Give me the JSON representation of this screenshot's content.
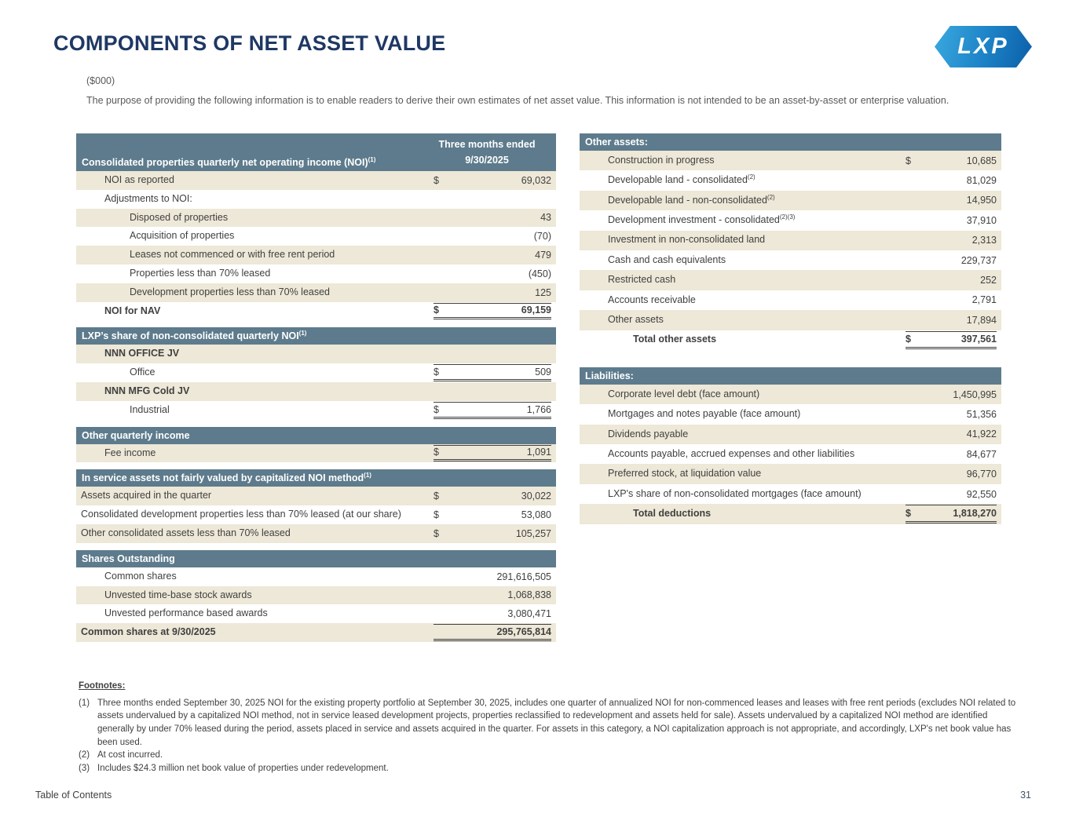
{
  "page": {
    "title": "COMPONENTS OF NET ASSET VALUE",
    "units": "($000)",
    "intro": "The purpose of providing the following information is to enable readers to derive their own estimates of net asset value. This information is not intended to be an asset-by-asset or enterprise valuation.",
    "logo_text": "LXP",
    "footer_link": "Table of Contents",
    "page_number": "31"
  },
  "colors": {
    "title_navy": "#1F3864",
    "header_slate": "#5D7B8C",
    "row_beige": "#EDE8D7",
    "logo_blue_light": "#3BA9DF",
    "logo_blue_dark": "#0B5FA9",
    "body_text": "#404040"
  },
  "left_table": {
    "items": [
      {
        "type": "colheader",
        "label": "Consolidated properties quarterly net operating income (NOI)",
        "sup": "(1)",
        "col1": "Three months ended",
        "col2": "9/30/2025"
      },
      {
        "type": "row",
        "label": "NOI as reported",
        "indent": 1,
        "dollar": "$",
        "value": "69,032",
        "shade": true
      },
      {
        "type": "row",
        "label": "Adjustments to NOI:",
        "indent": 1,
        "shade": false
      },
      {
        "type": "row",
        "label": "Disposed of properties",
        "indent": 2,
        "value": "43",
        "shade": true
      },
      {
        "type": "row",
        "label": "Acquisition of properties",
        "indent": 2,
        "value": "(70)",
        "shade": false
      },
      {
        "type": "row",
        "label": "Leases not commenced or with free rent period",
        "indent": 2,
        "value": "479",
        "shade": true
      },
      {
        "type": "row",
        "label": "Properties less than 70% leased",
        "indent": 2,
        "value": "(450)",
        "shade": false
      },
      {
        "type": "row",
        "label": "Development properties less than 70% leased",
        "indent": 2,
        "value": "125",
        "shade": true
      },
      {
        "type": "row",
        "label": "NOI for NAV",
        "indent": 1,
        "bold": true,
        "dollar": "$",
        "value": "69,159",
        "shade": false,
        "total": true
      },
      {
        "type": "section",
        "label": "LXP’s share of non-consolidated quarterly NOI",
        "sup": "(1)"
      },
      {
        "type": "row",
        "label": "NNN OFFICE JV",
        "indent": 1,
        "bold": true,
        "shade": true
      },
      {
        "type": "row",
        "label": "Office",
        "indent": 2,
        "dollar": "$",
        "value": "509",
        "shade": false,
        "total": true
      },
      {
        "type": "row",
        "label": "NNN MFG Cold JV",
        "indent": 1,
        "bold": true,
        "shade": true
      },
      {
        "type": "row",
        "label": "Industrial",
        "indent": 2,
        "dollar": "$",
        "value": "1,766",
        "shade": false,
        "total": true
      },
      {
        "type": "section",
        "label": "Other quarterly income"
      },
      {
        "type": "row",
        "label": "Fee income",
        "indent": 1,
        "dollar": "$",
        "value": "1,091",
        "shade": true,
        "total": true
      },
      {
        "type": "section",
        "label": "In service assets not fairly valued by capitalized NOI method",
        "sup": "(1)"
      },
      {
        "type": "row",
        "label": "Assets acquired in the quarter",
        "indent": 0,
        "dollar": "$",
        "value": "30,022",
        "shade": true
      },
      {
        "type": "row",
        "label": "Consolidated development properties less than 70% leased (at our share)",
        "indent": 0,
        "dollar": "$",
        "value": "53,080",
        "shade": false
      },
      {
        "type": "row",
        "label": "Other consolidated assets less than 70% leased",
        "indent": 0,
        "dollar": "$",
        "value": "105,257",
        "shade": true
      },
      {
        "type": "section",
        "label": "Shares Outstanding"
      },
      {
        "type": "row",
        "label": "Common shares",
        "indent": 1,
        "value": "291,616,505",
        "shade": false
      },
      {
        "type": "row",
        "label": "Unvested time-base stock awards",
        "indent": 1,
        "value": "1,068,838",
        "shade": true
      },
      {
        "type": "row",
        "label": "Unvested performance based awards",
        "indent": 1,
        "value": "3,080,471",
        "shade": false
      },
      {
        "type": "row",
        "label": "Common shares at 9/30/2025",
        "indent": 0,
        "bold": true,
        "value": "295,765,814",
        "shade": true,
        "total": true
      }
    ]
  },
  "right_table": {
    "items": [
      {
        "type": "section",
        "label": "Other assets:"
      },
      {
        "type": "row",
        "label": "Construction in progress",
        "indent": 1,
        "dollar": "$",
        "value": "10,685",
        "shade": true
      },
      {
        "type": "row",
        "label": "Developable land - consolidated",
        "sup": "(2)",
        "indent": 1,
        "value": "81,029",
        "shade": false
      },
      {
        "type": "row",
        "label": "Developable land - non-consolidated",
        "sup": "(2)",
        "indent": 1,
        "value": "14,950",
        "shade": true
      },
      {
        "type": "row",
        "label": "Development investment - consolidated",
        "sup": "(2)(3)",
        "indent": 1,
        "value": "37,910",
        "shade": false
      },
      {
        "type": "row",
        "label": "Investment in non-consolidated land",
        "indent": 1,
        "value": "2,313",
        "shade": true
      },
      {
        "type": "row",
        "label": "Cash and cash equivalents",
        "indent": 1,
        "value": "229,737",
        "shade": false
      },
      {
        "type": "row",
        "label": "Restricted cash",
        "indent": 1,
        "value": "252",
        "shade": true
      },
      {
        "type": "row",
        "label": "Accounts receivable",
        "indent": 1,
        "value": "2,791",
        "shade": false
      },
      {
        "type": "row",
        "label": "Other assets",
        "indent": 1,
        "value": "17,894",
        "shade": true
      },
      {
        "type": "row",
        "label": "Total other assets",
        "indent": 2,
        "bold": true,
        "dollar": "$",
        "value": "397,561",
        "shade": false,
        "total": true
      },
      {
        "type": "section",
        "label": "Liabilities:"
      },
      {
        "type": "row",
        "label": "Corporate level debt (face amount)",
        "indent": 1,
        "value": "1,450,995",
        "shade": true
      },
      {
        "type": "row",
        "label": "Mortgages and notes payable (face amount)",
        "indent": 1,
        "value": "51,356",
        "shade": false
      },
      {
        "type": "row",
        "label": "Dividends payable",
        "indent": 1,
        "value": "41,922",
        "shade": true
      },
      {
        "type": "row",
        "label": "Accounts payable, accrued expenses and other liabilities",
        "indent": 1,
        "value": "84,677",
        "shade": false
      },
      {
        "type": "row",
        "label": "Preferred stock, at liquidation value",
        "indent": 1,
        "value": "96,770",
        "shade": true
      },
      {
        "type": "row",
        "label": "LXP's share of non-consolidated mortgages (face amount)",
        "indent": 1,
        "value": "92,550",
        "shade": false
      },
      {
        "type": "row",
        "label": "Total deductions",
        "indent": 2,
        "bold": true,
        "dollar": "$",
        "value": "1,818,270",
        "shade": true,
        "total": true
      }
    ]
  },
  "footnotes": {
    "heading": "Footnotes:",
    "items": [
      {
        "num": "(1)",
        "text": "Three months ended September 30, 2025 NOI for the existing property portfolio at September 30, 2025, includes one quarter of annualized NOI for non-commenced leases and leases with free rent periods (excludes NOI related to assets undervalued by a capitalized NOI method, not in service leased development projects, properties reclassified to redevelopment and assets held for sale). Assets undervalued by a capitalized NOI method are identified generally by under 70% leased during the period, assets placed in service and assets acquired in the quarter. For assets in this category, a NOI capitalization approach is not appropriate, and accordingly, LXP's net book value has been used."
      },
      {
        "num": "(2)",
        "text": "At cost incurred."
      },
      {
        "num": "(3)",
        "text": "Includes $24.3 million net book value of properties under redevelopment."
      }
    ]
  }
}
